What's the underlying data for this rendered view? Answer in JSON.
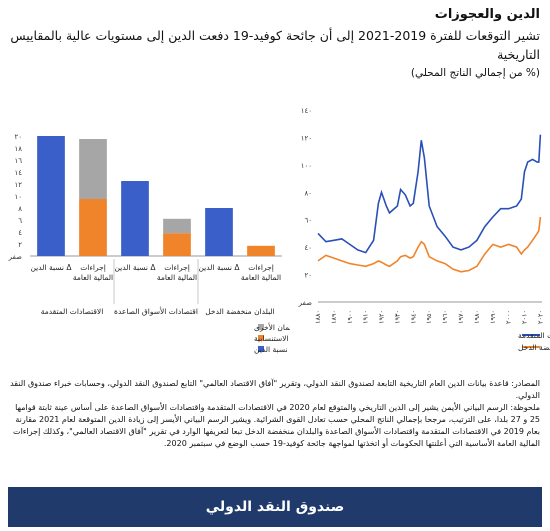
{
  "header": {
    "title": "الدين والعجوزات",
    "subtitle": "تشير التوقعات للفترة 2019-2021 إلى أن جائحة كوفيد-19 دفعت الدين إلى مستويات عالية بالمقاييس التاريخية",
    "unit": "(% من إجمالي الناتج المحلي)"
  },
  "notes": {
    "source": "المصادر: قاعدة بيانات الدين العام التاريخية التابعة لصندوق النقد الدولي، وتقرير \"آفاق الاقتصاد العالمي\" التابع لصندوق النقد الدولي، وحسابات خبراء صندوق النقد الدولي.",
    "note": "ملحوظة: الرسم البياني الأيمن يشير إلى الدين التاريخي والمتوقع لعام 2020 في الاقتصادات المتقدمة واقتصادات الأسواق الصاعدة على أساس عينة ثابتة قوامها 25 و 27 بلدا، على الترتيب، مرجحا بإجمالي الناتج المحلي حسب تعادل القوى الشرائية. ويشير الرسم البياني الأيسر إلى زيادة الدين المتوقعة لعام 2021 مقارنة بعام 2019 في الاقتصادات المتقدمة واقتصادات الأسواق الصاعدة والبلدان منخفضة الدخل تبعا لتعريفها الوارد في تقرير \"آفاق الاقتصاد العالمي\"، وكذلك إجراءات المالية العامة الأساسية التي أعلنتها الحكومات أو اتخذتها لمواجهة جائحة كوفيد-19 حسب الوضع في سبتمبر 2020."
  },
  "banner": {
    "text": "صندوق النقد الدولي"
  },
  "colors": {
    "blue": "#3b5fc8",
    "orange": "#f0842a",
    "gray": "#a6a6a6",
    "dark_blue": "#2a50b8",
    "banner": "#1f3a6b"
  },
  "chart_data": [
    {
      "type": "bar",
      "stacked": true,
      "ylim": [
        0,
        20
      ],
      "yticks": [
        "صفر",
        "٢",
        "٤",
        "٦",
        "٨",
        "١٠",
        "١٢",
        "١٤",
        "١٦",
        "١٨",
        "٢٠"
      ],
      "groups": [
        "الاقتصادات المتقدمة",
        "اقتصادات الأسواق الصاعدة",
        "البلدان منخفضة الدخل"
      ],
      "categories": [
        "Δ نسبة الدين",
        "إجراءات المالية العامة",
        "Δ نسبة الدين",
        "إجراءات المالية العامة",
        "Δ نسبة الدين",
        "إجراءات المالية العامة"
      ],
      "series": [
        {
          "name": "Δ نسبة الدين",
          "color": "#3b5fc8",
          "values": [
            20,
            0,
            12.5,
            0,
            8,
            0
          ]
        },
        {
          "name": "إجراءات المالية العامة الاستنسابية",
          "color": "#f0842a",
          "values": [
            0,
            9.5,
            0,
            3.8,
            0,
            1.7
          ]
        },
        {
          "name": "ضمانات القروض/إجراءات الائتمان الأخرى",
          "color": "#a6a6a6",
          "values": [
            0,
            10,
            0,
            2.4,
            0,
            0
          ]
        }
      ],
      "legend": [
        "ضمانات القروض/إجراءات الائتمان الأخرى",
        "إجراءات المالية العامة الاستنسابية",
        "Δ نسبة الدين"
      ]
    },
    {
      "type": "line",
      "ylim": [
        0,
        140
      ],
      "yticks": [
        "صفر",
        "٢٠",
        "٤٠",
        "٦٠",
        "٨٠",
        "١٠٠",
        "١٢٠",
        "١٤٠"
      ],
      "xticks": [
        "١٨٨٠",
        "١٨٩٠",
        "١٩٠٠",
        "١٩١٠",
        "١٩٢٠",
        "١٩٣٠",
        "١٩٤٠",
        "١٩٥٠",
        "١٩٦٠",
        "١٩٧٠",
        "١٩٨٠",
        "١٩٩٠",
        "٢٠٠٠",
        "٢٠١٠",
        "٢٠٢٠"
      ],
      "x": [
        1880,
        1885,
        1890,
        1895,
        1900,
        1905,
        1910,
        1915,
        1918,
        1920,
        1923,
        1925,
        1930,
        1932,
        1935,
        1938,
        1940,
        1943,
        1945,
        1947,
        1950,
        1955,
        1960,
        1965,
        1970,
        1975,
        1980,
        1985,
        1990,
        1995,
        2000,
        2005,
        2008,
        2010,
        2012,
        2015,
        2018,
        2019,
        2020
      ],
      "series": [
        {
          "name": "الاقتصادات المتقدمة",
          "color": "#2a50b8",
          "values": [
            50,
            44,
            45,
            46,
            42,
            38,
            36,
            45,
            72,
            80,
            70,
            65,
            70,
            82,
            78,
            70,
            72,
            95,
            118,
            105,
            70,
            55,
            48,
            40,
            38,
            40,
            45,
            55,
            62,
            68,
            68,
            70,
            75,
            95,
            102,
            104,
            102,
            102,
            122
          ]
        },
        {
          "name": "اقتصادات الأسواق الصاعدة والبلدان منخفضة الدخل",
          "color": "#f0842a",
          "values": [
            30,
            34,
            32,
            30,
            28,
            27,
            26,
            28,
            30,
            29,
            27,
            26,
            30,
            33,
            34,
            32,
            33,
            40,
            44,
            42,
            33,
            30,
            28,
            24,
            22,
            23,
            26,
            35,
            42,
            40,
            42,
            40,
            35,
            38,
            40,
            45,
            50,
            52,
            62
          ]
        }
      ]
    }
  ]
}
